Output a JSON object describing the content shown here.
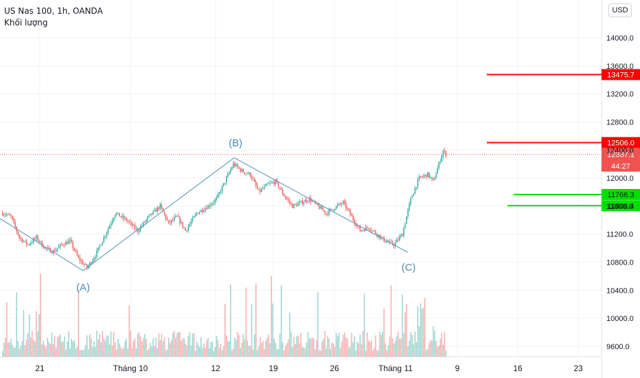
{
  "legend": {
    "symbol_line": "US Nas 100, 1h, OANDA",
    "volume_label": "Khối lượng"
  },
  "currency_button": "USD",
  "colors": {
    "up": "#26a69a",
    "down": "#ef5350",
    "wave": "#5b9bbd",
    "wave_label": "#4a8db7",
    "red_level": "#ff0000",
    "green_level": "#00e000",
    "current_price": "#ef5350"
  },
  "chart_data": {
    "type": "candlestick",
    "title": "",
    "y_axis": {
      "ticks": [
        9600,
        10000,
        10400,
        10800,
        11200,
        11600,
        12000,
        12400,
        12800,
        13200,
        13600,
        14000
      ],
      "ylim": [
        9450,
        14450
      ],
      "tick_labels": [
        "9600.0",
        "10000.0",
        "10400.0",
        "10800.0",
        "11200.0",
        "11600.0",
        "12000.0",
        "12400.0",
        "12800.0",
        "13200.0",
        "13600.0",
        "14000.0"
      ]
    },
    "x_axis": {
      "tick_labels": [
        "21",
        "Tháng 10",
        "12",
        "19",
        "26",
        "Tháng 11",
        "9",
        "16",
        "23"
      ]
    },
    "wave_points": [
      {
        "label": "",
        "price": 11560
      },
      {
        "label": "(A)",
        "price": 10680
      },
      {
        "label": "(B)",
        "price": 12290
      },
      {
        "label": "(C)",
        "price": 10940
      }
    ],
    "levels": [
      {
        "price": 13475.7,
        "label": "13475.7",
        "kind": "resistance"
      },
      {
        "price": 12506.0,
        "label": "12506.0",
        "kind": "resistance"
      },
      {
        "price": 11766.3,
        "label": "11766.3",
        "kind": "support"
      },
      {
        "price": 11606.4,
        "label": "11606.4",
        "kind": "support"
      }
    ],
    "current_price": {
      "price": 12337.1,
      "label": "12337.1",
      "countdown": "44:27"
    },
    "price_path": [
      [
        0,
        11500
      ],
      [
        6,
        11450
      ],
      [
        12,
        11150
      ],
      [
        18,
        11050
      ],
      [
        24,
        11150
      ],
      [
        30,
        11000
      ],
      [
        36,
        10950
      ],
      [
        42,
        11050
      ],
      [
        48,
        11100
      ],
      [
        54,
        10850
      ],
      [
        60,
        10720
      ],
      [
        66,
        10900
      ],
      [
        72,
        11150
      ],
      [
        80,
        11500
      ],
      [
        88,
        11400
      ],
      [
        96,
        11250
      ],
      [
        104,
        11450
      ],
      [
        112,
        11600
      ],
      [
        118,
        11350
      ],
      [
        124,
        11450
      ],
      [
        130,
        11250
      ],
      [
        138,
        11500
      ],
      [
        146,
        11600
      ],
      [
        152,
        11700
      ],
      [
        158,
        11950
      ],
      [
        164,
        12200
      ],
      [
        170,
        12100
      ],
      [
        176,
        12050
      ],
      [
        182,
        11800
      ],
      [
        188,
        11900
      ],
      [
        194,
        11950
      ],
      [
        200,
        11750
      ],
      [
        206,
        11600
      ],
      [
        212,
        11650
      ],
      [
        218,
        11700
      ],
      [
        224,
        11600
      ],
      [
        230,
        11500
      ],
      [
        236,
        11580
      ],
      [
        242,
        11650
      ],
      [
        248,
        11450
      ],
      [
        254,
        11250
      ],
      [
        260,
        11300
      ],
      [
        266,
        11200
      ],
      [
        272,
        11100
      ],
      [
        278,
        11050
      ],
      [
        284,
        11200
      ],
      [
        290,
        11700
      ],
      [
        296,
        12000
      ],
      [
        302,
        12050
      ],
      [
        306,
        11950
      ],
      [
        310,
        12200
      ],
      [
        313,
        12390
      ],
      [
        315,
        12337
      ]
    ],
    "volume": {
      "label": "Khối lượng"
    }
  }
}
